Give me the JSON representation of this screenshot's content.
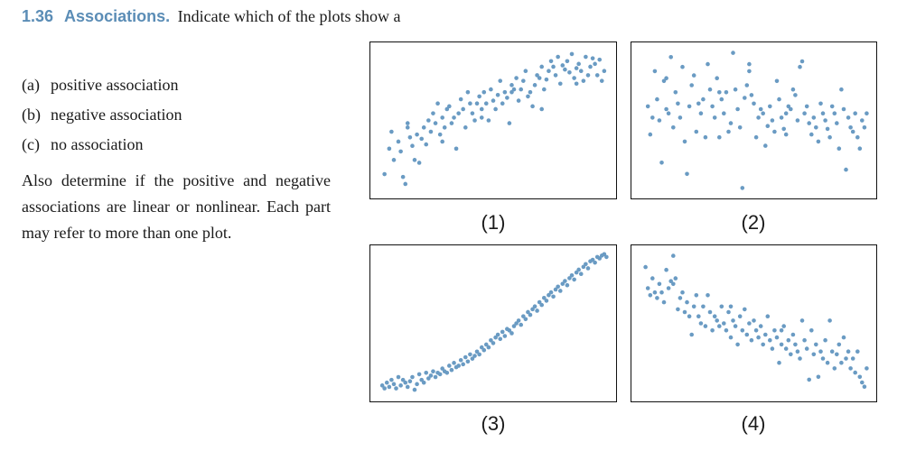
{
  "exercise": {
    "number": "1.36",
    "title": "Associations.",
    "intro": "Indicate which of the plots show a"
  },
  "options": [
    {
      "label": "(a)",
      "text": "positive association"
    },
    {
      "label": "(b)",
      "text": "negative association"
    },
    {
      "label": "(c)",
      "text": "no association"
    }
  ],
  "paragraph": "Also determine if the positive and negative associations are linear or nonlinear.  Each part may refer to more than one plot.",
  "colors": {
    "point": "#6a9bc3",
    "frame": "#111111",
    "accent": "#5b8db6"
  },
  "chart_data": [
    {
      "type": "scatter",
      "label": "(1)",
      "xlim": [
        0,
        1
      ],
      "ylim": [
        0,
        1
      ],
      "x": [
        0.03,
        0.05,
        0.06,
        0.07,
        0.09,
        0.1,
        0.11,
        0.12,
        0.13,
        0.14,
        0.15,
        0.16,
        0.17,
        0.18,
        0.19,
        0.2,
        0.21,
        0.22,
        0.23,
        0.24,
        0.25,
        0.26,
        0.27,
        0.28,
        0.29,
        0.3,
        0.31,
        0.32,
        0.33,
        0.34,
        0.35,
        0.36,
        0.37,
        0.38,
        0.39,
        0.4,
        0.41,
        0.42,
        0.43,
        0.44,
        0.45,
        0.46,
        0.47,
        0.48,
        0.49,
        0.5,
        0.51,
        0.52,
        0.53,
        0.54,
        0.55,
        0.56,
        0.57,
        0.58,
        0.59,
        0.6,
        0.61,
        0.62,
        0.63,
        0.64,
        0.65,
        0.66,
        0.67,
        0.68,
        0.69,
        0.7,
        0.71,
        0.72,
        0.73,
        0.74,
        0.75,
        0.76,
        0.77,
        0.78,
        0.79,
        0.8,
        0.81,
        0.82,
        0.83,
        0.84,
        0.85,
        0.86,
        0.87,
        0.88,
        0.89,
        0.9,
        0.91,
        0.92,
        0.93,
        0.94,
        0.95,
        0.96,
        0.97,
        0.98,
        0.13,
        0.28,
        0.45,
        0.58,
        0.71,
        0.86
      ],
      "y": [
        0.12,
        0.3,
        0.42,
        0.22,
        0.35,
        0.28,
        0.1,
        0.05,
        0.45,
        0.38,
        0.32,
        0.22,
        0.4,
        0.2,
        0.37,
        0.45,
        0.33,
        0.5,
        0.42,
        0.55,
        0.48,
        0.62,
        0.4,
        0.52,
        0.45,
        0.58,
        0.6,
        0.48,
        0.52,
        0.3,
        0.55,
        0.65,
        0.58,
        0.45,
        0.7,
        0.62,
        0.55,
        0.5,
        0.62,
        0.67,
        0.58,
        0.7,
        0.62,
        0.5,
        0.72,
        0.64,
        0.58,
        0.68,
        0.78,
        0.62,
        0.7,
        0.66,
        0.48,
        0.75,
        0.72,
        0.8,
        0.64,
        0.72,
        0.78,
        0.85,
        0.67,
        0.7,
        0.6,
        0.75,
        0.82,
        0.8,
        0.88,
        0.72,
        0.79,
        0.85,
        0.92,
        0.88,
        0.82,
        0.95,
        0.76,
        0.89,
        0.86,
        0.92,
        0.84,
        0.97,
        0.8,
        0.76,
        0.9,
        0.85,
        0.78,
        0.95,
        0.82,
        0.88,
        0.94,
        0.9,
        0.82,
        0.93,
        0.78,
        0.85,
        0.48,
        0.35,
        0.52,
        0.7,
        0.58,
        0.87
      ]
    },
    {
      "type": "scatter",
      "label": "(2)",
      "xlim": [
        0,
        1
      ],
      "ylim": [
        0,
        1
      ],
      "x": [
        0.04,
        0.05,
        0.06,
        0.07,
        0.08,
        0.09,
        0.1,
        0.11,
        0.12,
        0.13,
        0.14,
        0.15,
        0.16,
        0.17,
        0.18,
        0.19,
        0.2,
        0.21,
        0.22,
        0.23,
        0.24,
        0.25,
        0.26,
        0.27,
        0.28,
        0.29,
        0.3,
        0.31,
        0.32,
        0.33,
        0.34,
        0.35,
        0.36,
        0.37,
        0.38,
        0.39,
        0.4,
        0.41,
        0.42,
        0.43,
        0.44,
        0.45,
        0.46,
        0.47,
        0.48,
        0.49,
        0.5,
        0.51,
        0.52,
        0.53,
        0.54,
        0.55,
        0.56,
        0.57,
        0.58,
        0.59,
        0.6,
        0.61,
        0.62,
        0.63,
        0.64,
        0.65,
        0.66,
        0.67,
        0.68,
        0.69,
        0.7,
        0.71,
        0.72,
        0.73,
        0.74,
        0.75,
        0.76,
        0.77,
        0.78,
        0.79,
        0.8,
        0.81,
        0.82,
        0.83,
        0.84,
        0.85,
        0.86,
        0.87,
        0.88,
        0.89,
        0.9,
        0.91,
        0.92,
        0.93,
        0.94,
        0.95,
        0.96,
        0.97,
        0.98,
        0.99,
        0.12,
        0.48,
        0.35,
        0.64
      ],
      "y": [
        0.6,
        0.4,
        0.52,
        0.85,
        0.65,
        0.5,
        0.2,
        0.78,
        0.58,
        0.55,
        0.95,
        0.45,
        0.7,
        0.62,
        0.52,
        0.88,
        0.35,
        0.12,
        0.6,
        0.75,
        0.82,
        0.42,
        0.62,
        0.55,
        0.65,
        0.38,
        0.9,
        0.72,
        0.6,
        0.52,
        0.8,
        0.38,
        0.65,
        0.55,
        0.7,
        0.42,
        0.48,
        0.98,
        0.72,
        0.58,
        0.45,
        0.02,
        0.66,
        0.75,
        0.9,
        0.68,
        0.62,
        0.38,
        0.52,
        0.58,
        0.55,
        0.32,
        0.46,
        0.6,
        0.5,
        0.42,
        0.78,
        0.65,
        0.52,
        0.44,
        0.55,
        0.6,
        0.58,
        0.72,
        0.68,
        0.5,
        0.88,
        0.92,
        0.55,
        0.6,
        0.48,
        0.4,
        0.52,
        0.45,
        0.35,
        0.62,
        0.55,
        0.5,
        0.44,
        0.38,
        0.6,
        0.55,
        0.48,
        0.3,
        0.72,
        0.58,
        0.15,
        0.52,
        0.45,
        0.42,
        0.55,
        0.38,
        0.3,
        0.5,
        0.45,
        0.55,
        0.8,
        0.85,
        0.7,
        0.4
      ]
    },
    {
      "type": "scatter",
      "label": "(3)",
      "xlim": [
        0,
        1
      ],
      "ylim": [
        0,
        1
      ],
      "x": [
        0.02,
        0.03,
        0.04,
        0.05,
        0.06,
        0.07,
        0.08,
        0.09,
        0.1,
        0.11,
        0.12,
        0.13,
        0.14,
        0.15,
        0.16,
        0.17,
        0.18,
        0.19,
        0.2,
        0.21,
        0.22,
        0.23,
        0.24,
        0.25,
        0.26,
        0.27,
        0.28,
        0.29,
        0.3,
        0.31,
        0.32,
        0.33,
        0.34,
        0.35,
        0.36,
        0.37,
        0.38,
        0.39,
        0.4,
        0.41,
        0.42,
        0.43,
        0.44,
        0.45,
        0.46,
        0.47,
        0.48,
        0.49,
        0.5,
        0.51,
        0.52,
        0.53,
        0.54,
        0.55,
        0.56,
        0.57,
        0.58,
        0.59,
        0.6,
        0.61,
        0.62,
        0.63,
        0.64,
        0.65,
        0.66,
        0.67,
        0.68,
        0.69,
        0.7,
        0.71,
        0.72,
        0.73,
        0.74,
        0.75,
        0.76,
        0.77,
        0.78,
        0.79,
        0.8,
        0.81,
        0.82,
        0.83,
        0.84,
        0.85,
        0.86,
        0.87,
        0.88,
        0.89,
        0.9,
        0.91,
        0.92,
        0.93,
        0.94,
        0.95,
        0.96,
        0.97,
        0.98,
        0.99
      ],
      "y": [
        0.06,
        0.04,
        0.08,
        0.05,
        0.1,
        0.07,
        0.04,
        0.12,
        0.06,
        0.1,
        0.08,
        0.05,
        0.09,
        0.12,
        0.03,
        0.07,
        0.14,
        0.1,
        0.08,
        0.15,
        0.11,
        0.13,
        0.16,
        0.12,
        0.15,
        0.14,
        0.18,
        0.16,
        0.15,
        0.2,
        0.17,
        0.22,
        0.19,
        0.2,
        0.24,
        0.21,
        0.26,
        0.23,
        0.28,
        0.25,
        0.27,
        0.3,
        0.28,
        0.33,
        0.31,
        0.35,
        0.33,
        0.38,
        0.36,
        0.4,
        0.42,
        0.39,
        0.44,
        0.41,
        0.46,
        0.45,
        0.43,
        0.48,
        0.5,
        0.52,
        0.49,
        0.55,
        0.53,
        0.58,
        0.56,
        0.6,
        0.62,
        0.59,
        0.65,
        0.63,
        0.68,
        0.66,
        0.7,
        0.72,
        0.69,
        0.74,
        0.76,
        0.73,
        0.78,
        0.8,
        0.77,
        0.82,
        0.84,
        0.81,
        0.86,
        0.88,
        0.85,
        0.9,
        0.92,
        0.89,
        0.94,
        0.95,
        0.93,
        0.97,
        0.96,
        0.98,
        0.99,
        0.97
      ]
    },
    {
      "type": "scatter",
      "label": "(4)",
      "xlim": [
        0,
        1
      ],
      "ylim": [
        0,
        1
      ],
      "x": [
        0.03,
        0.04,
        0.05,
        0.06,
        0.07,
        0.08,
        0.09,
        0.1,
        0.11,
        0.12,
        0.13,
        0.14,
        0.15,
        0.16,
        0.17,
        0.18,
        0.19,
        0.2,
        0.21,
        0.22,
        0.23,
        0.24,
        0.25,
        0.26,
        0.27,
        0.28,
        0.29,
        0.3,
        0.31,
        0.32,
        0.33,
        0.34,
        0.35,
        0.36,
        0.37,
        0.38,
        0.39,
        0.4,
        0.41,
        0.42,
        0.43,
        0.44,
        0.45,
        0.46,
        0.47,
        0.48,
        0.49,
        0.5,
        0.51,
        0.52,
        0.53,
        0.54,
        0.55,
        0.56,
        0.57,
        0.58,
        0.59,
        0.6,
        0.61,
        0.62,
        0.63,
        0.64,
        0.65,
        0.66,
        0.67,
        0.68,
        0.69,
        0.7,
        0.71,
        0.72,
        0.73,
        0.74,
        0.75,
        0.76,
        0.77,
        0.78,
        0.79,
        0.8,
        0.81,
        0.82,
        0.83,
        0.84,
        0.85,
        0.86,
        0.87,
        0.88,
        0.89,
        0.9,
        0.91,
        0.92,
        0.93,
        0.94,
        0.95,
        0.96,
        0.97,
        0.98,
        0.99,
        0.15,
        0.4,
        0.62
      ],
      "y": [
        0.9,
        0.75,
        0.7,
        0.82,
        0.72,
        0.68,
        0.78,
        0.72,
        0.65,
        0.88,
        0.75,
        0.8,
        0.98,
        0.82,
        0.6,
        0.68,
        0.72,
        0.58,
        0.65,
        0.55,
        0.42,
        0.62,
        0.7,
        0.55,
        0.5,
        0.62,
        0.48,
        0.7,
        0.58,
        0.45,
        0.55,
        0.52,
        0.48,
        0.62,
        0.5,
        0.45,
        0.58,
        0.4,
        0.52,
        0.48,
        0.35,
        0.55,
        0.45,
        0.6,
        0.42,
        0.5,
        0.38,
        0.52,
        0.45,
        0.4,
        0.48,
        0.35,
        0.42,
        0.55,
        0.38,
        0.32,
        0.45,
        0.4,
        0.22,
        0.35,
        0.48,
        0.32,
        0.38,
        0.28,
        0.42,
        0.35,
        0.3,
        0.25,
        0.52,
        0.38,
        0.32,
        0.1,
        0.45,
        0.28,
        0.35,
        0.12,
        0.3,
        0.25,
        0.38,
        0.22,
        0.52,
        0.3,
        0.18,
        0.28,
        0.35,
        0.22,
        0.4,
        0.25,
        0.3,
        0.18,
        0.25,
        0.15,
        0.3,
        0.12,
        0.08,
        0.05,
        0.18,
        0.78,
        0.62,
        0.45
      ]
    }
  ]
}
